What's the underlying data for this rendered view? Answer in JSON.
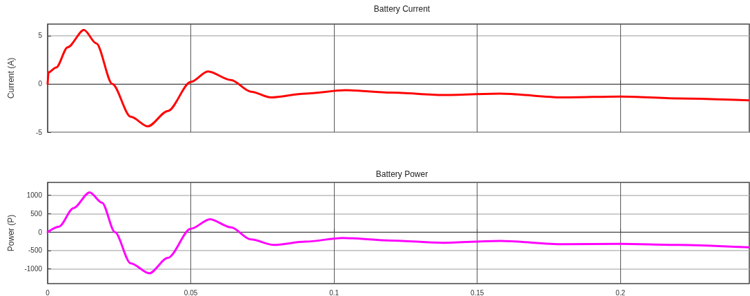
{
  "chart_data": [
    {
      "type": "line",
      "title": "Battery Current",
      "ylabel": "Current (A)",
      "xlim": [
        0,
        0.245
      ],
      "xticks": [
        0,
        0.05,
        0.1,
        0.15,
        0.2
      ],
      "ylim": [
        -5,
        6.2
      ],
      "yticks": [
        -5,
        0,
        5
      ],
      "grid": true,
      "tick_labels": "y",
      "series": [
        {
          "color": "#ff0000",
          "x": [
            0,
            0.0003,
            0.003,
            0.007,
            0.0127,
            0.017,
            0.0226,
            0.029,
            0.035,
            0.042,
            0.05,
            0.056,
            0.064,
            0.071,
            0.078,
            0.09,
            0.104,
            0.12,
            0.138,
            0.158,
            0.18,
            0.2,
            0.22,
            0.2447
          ],
          "values": [
            0,
            1.2,
            1.7,
            3.8,
            5.6,
            4.2,
            0,
            -3.4,
            -4.4,
            -2.8,
            0.2,
            1.3,
            0.4,
            -0.8,
            -1.4,
            -1.0,
            -0.65,
            -0.9,
            -1.15,
            -1.0,
            -1.4,
            -1.3,
            -1.5,
            -1.7
          ]
        }
      ]
    },
    {
      "type": "line",
      "title": "Battery Power",
      "ylabel": "Power (P)",
      "xlim": [
        0,
        0.245
      ],
      "xticks": [
        0,
        0.05,
        0.1,
        0.15,
        0.2
      ],
      "ylim": [
        -1400,
        1350
      ],
      "yticks": [
        -1000,
        -500,
        0,
        500,
        1000
      ],
      "grid": true,
      "series": [
        {
          "color": "#ff00ff",
          "x": [
            0,
            0.004,
            0.009,
            0.0147,
            0.019,
            0.0235,
            0.029,
            0.0355,
            0.042,
            0.05,
            0.0567,
            0.064,
            0.071,
            0.079,
            0.09,
            0.103,
            0.12,
            0.138,
            0.158,
            0.18,
            0.2,
            0.22,
            0.2447
          ],
          "values": [
            0,
            150,
            650,
            1080,
            800,
            0,
            -850,
            -1120,
            -700,
            90,
            350,
            130,
            -200,
            -350,
            -260,
            -160,
            -230,
            -290,
            -240,
            -330,
            -320,
            -350,
            -415
          ]
        }
      ]
    }
  ]
}
